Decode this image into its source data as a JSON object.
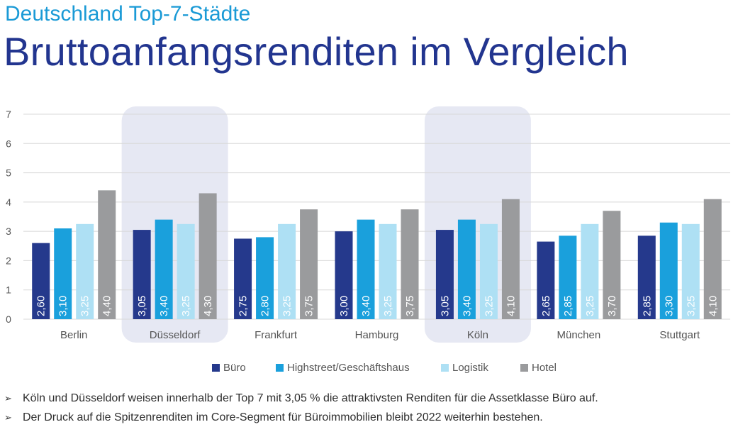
{
  "header": {
    "subtitle": "Deutschland Top-7-Städte",
    "title": "Bruttoanfangsrenditen im Vergleich"
  },
  "colors": {
    "buero": "#25398c",
    "highstreet": "#1aa0dc",
    "logistik": "#aee0f4",
    "hotel": "#9a9b9d",
    "highlight": "#e6e8f3",
    "grid": "#d8d8d8"
  },
  "chart_data": {
    "type": "bar",
    "categories": [
      "Berlin",
      "Düsseldorf",
      "Frankfurt",
      "Hamburg",
      "Köln",
      "München",
      "Stuttgart"
    ],
    "highlighted_categories": [
      "Düsseldorf",
      "Köln"
    ],
    "ylim": [
      0,
      7
    ],
    "yticks": [
      "0",
      "1",
      "2",
      "3",
      "4",
      "5",
      "6",
      "7"
    ],
    "grid": true,
    "legend_position": "bottom",
    "series": [
      {
        "name": "Büro",
        "values": [
          2.6,
          3.05,
          2.75,
          3.0,
          3.05,
          2.65,
          2.85
        ],
        "labels": [
          "2,60",
          "3,05",
          "2,75",
          "3,00",
          "3,05",
          "2,65",
          "2,85"
        ]
      },
      {
        "name": "Highstreet/Geschäftshaus",
        "values": [
          3.1,
          3.4,
          2.8,
          3.4,
          3.4,
          2.85,
          3.3
        ],
        "labels": [
          "3,10",
          "3,40",
          "2,80",
          "3,40",
          "3,40",
          "2,85",
          "3,30"
        ]
      },
      {
        "name": "Logistik",
        "values": [
          3.25,
          3.25,
          3.25,
          3.25,
          3.25,
          3.25,
          3.25
        ],
        "labels": [
          "3,25",
          "3,25",
          "3,25",
          "3,25",
          "3,25",
          "3,25",
          "3,25"
        ]
      },
      {
        "name": "Hotel",
        "values": [
          4.4,
          4.3,
          3.75,
          3.75,
          4.1,
          3.7,
          4.1
        ],
        "labels": [
          "4,40",
          "4,30",
          "3,75",
          "3,75",
          "4,10",
          "3,70",
          "4,10"
        ]
      }
    ]
  },
  "bullets": {
    "arrow": "➢",
    "items": [
      "Köln und Düsseldorf weisen innerhalb der Top 7 mit 3,05 % die attraktivsten Renditen für die Assetklasse Büro auf.",
      "Der Druck auf die Spitzenrenditen im Core-Segment für Büroimmobilien bleibt 2022 weiterhin bestehen."
    ]
  }
}
